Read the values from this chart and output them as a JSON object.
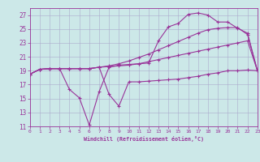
{
  "xlabel": "Windchill (Refroidissement éolien,°C)",
  "background_color": "#cce8e8",
  "grid_color": "#aaaacc",
  "line_color": "#993399",
  "x_values": [
    0,
    1,
    2,
    3,
    4,
    5,
    6,
    7,
    8,
    9,
    10,
    11,
    12,
    13,
    14,
    15,
    16,
    17,
    18,
    19,
    20,
    21,
    22,
    23
  ],
  "series1": [
    18.5,
    19.2,
    19.3,
    19.3,
    19.3,
    19.3,
    19.3,
    19.5,
    19.6,
    19.7,
    19.8,
    20.0,
    20.3,
    20.6,
    20.9,
    21.2,
    21.5,
    21.8,
    22.1,
    22.4,
    22.7,
    23.0,
    23.3,
    19.0
  ],
  "series2": [
    18.5,
    19.2,
    19.3,
    19.3,
    19.3,
    19.3,
    19.3,
    19.5,
    19.7,
    20.0,
    20.4,
    20.9,
    21.4,
    22.0,
    22.6,
    23.2,
    23.8,
    24.4,
    24.9,
    25.1,
    25.2,
    25.2,
    24.2,
    19.0
  ],
  "series3": [
    18.5,
    19.2,
    19.3,
    19.3,
    16.3,
    15.1,
    11.2,
    16.0,
    19.5,
    19.8,
    19.9,
    20.0,
    20.1,
    23.3,
    25.3,
    25.8,
    27.1,
    27.3,
    27.0,
    26.0,
    26.0,
    25.1,
    24.4,
    19.0
  ],
  "series4": [
    18.5,
    19.2,
    19.3,
    19.3,
    19.3,
    19.3,
    19.3,
    19.5,
    15.6,
    13.9,
    17.4,
    17.4,
    17.5,
    17.6,
    17.7,
    17.8,
    18.0,
    18.2,
    18.5,
    18.7,
    19.0,
    19.0,
    19.1,
    19.0
  ],
  "ylim": [
    11,
    28
  ],
  "xlim": [
    0,
    23
  ],
  "yticks": [
    11,
    13,
    15,
    17,
    19,
    21,
    23,
    25,
    27
  ],
  "xticks": [
    0,
    1,
    2,
    3,
    4,
    5,
    6,
    7,
    8,
    9,
    10,
    11,
    12,
    13,
    14,
    15,
    16,
    17,
    18,
    19,
    20,
    21,
    22,
    23
  ],
  "figsize": [
    3.2,
    2.0
  ],
  "dpi": 100
}
